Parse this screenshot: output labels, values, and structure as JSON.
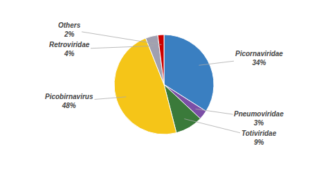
{
  "chart_data": {
    "type": "pie",
    "categories": [
      "Picornaviridae",
      "Pneumoviridae",
      "Totiviridae",
      "Picobirnavirus",
      "Retroviridae",
      "Others"
    ],
    "values": [
      34,
      3,
      9,
      48,
      4,
      2
    ],
    "value_labels": [
      "34%",
      "3%",
      "9%",
      "48%",
      "4%",
      "2%"
    ],
    "colors": [
      "#3a7fc1",
      "#7b4fa6",
      "#3a7a3a",
      "#f5c518",
      "#a0a0b0",
      "#cc0000"
    ],
    "data_labels": true
  }
}
